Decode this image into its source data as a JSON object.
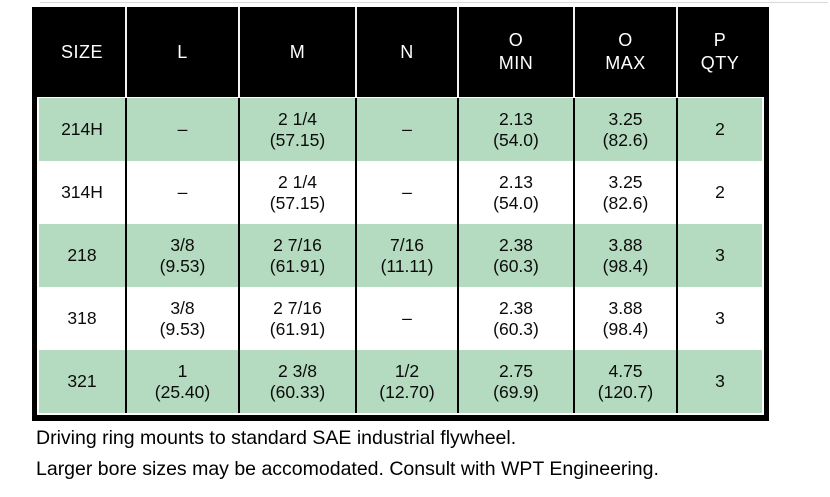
{
  "table": {
    "header": [
      {
        "lines": [
          "SIZE"
        ]
      },
      {
        "lines": [
          "L"
        ]
      },
      {
        "lines": [
          "M"
        ]
      },
      {
        "lines": [
          "N"
        ]
      },
      {
        "lines": [
          "O",
          "MIN"
        ]
      },
      {
        "lines": [
          "O",
          "MAX"
        ]
      },
      {
        "lines": [
          "P",
          "QTY"
        ]
      }
    ],
    "rows": [
      {
        "shade": "green",
        "cells": [
          [
            "214H"
          ],
          [
            "–"
          ],
          [
            "2 1/4",
            "(57.15)"
          ],
          [
            "–"
          ],
          [
            "2.13",
            "(54.0)"
          ],
          [
            "3.25",
            "(82.6)"
          ],
          [
            "2"
          ]
        ]
      },
      {
        "shade": "white",
        "cells": [
          [
            "314H"
          ],
          [
            "–"
          ],
          [
            "2 1/4",
            "(57.15)"
          ],
          [
            "–"
          ],
          [
            "2.13",
            "(54.0)"
          ],
          [
            "3.25",
            "(82.6)"
          ],
          [
            "2"
          ]
        ]
      },
      {
        "shade": "green",
        "cells": [
          [
            "218"
          ],
          [
            "3/8",
            "(9.53)"
          ],
          [
            "2 7/16",
            "(61.91)"
          ],
          [
            "7/16",
            "(11.11)"
          ],
          [
            "2.38",
            "(60.3)"
          ],
          [
            "3.88",
            "(98.4)"
          ],
          [
            "3"
          ]
        ]
      },
      {
        "shade": "white",
        "cells": [
          [
            "318"
          ],
          [
            "3/8",
            "(9.53)"
          ],
          [
            "2 7/16",
            "(61.91)"
          ],
          [
            "–"
          ],
          [
            "2.38",
            "(60.3)"
          ],
          [
            "3.88",
            "(98.4)"
          ],
          [
            "3"
          ]
        ]
      },
      {
        "shade": "green",
        "cells": [
          [
            "321"
          ],
          [
            "1",
            "(25.40)"
          ],
          [
            "2 3/8",
            "(60.33)"
          ],
          [
            "1/2",
            "(12.70)"
          ],
          [
            "2.75",
            "(69.9)"
          ],
          [
            "4.75",
            "(120.7)"
          ],
          [
            "3"
          ]
        ]
      }
    ]
  },
  "notes": [
    "Driving ring mounts to standard SAE industrial flywheel.",
    "Larger bore sizes may be accomodated. Consult with WPT Engineering."
  ],
  "colors": {
    "row_green": "#b4dabf",
    "header_bg": "#000000",
    "header_text": "#ffffff"
  }
}
